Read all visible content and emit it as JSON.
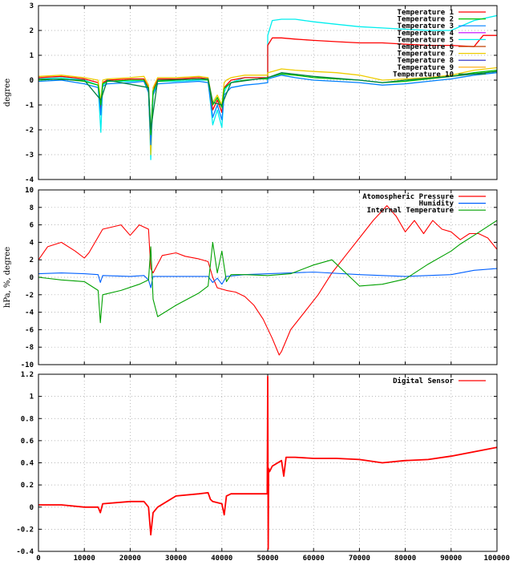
{
  "chart_data": [
    {
      "type": "line",
      "ylabel": "degree",
      "ylim": [
        -4,
        3
      ],
      "yticks": [
        -4,
        -3,
        -2,
        -1,
        0,
        1,
        2,
        3
      ],
      "xlim": [
        0,
        100000
      ],
      "grid": true,
      "legend": "top-right",
      "series": [
        {
          "name": "Temperature 1",
          "color": "#ff0000"
        },
        {
          "name": "Temperature 2",
          "color": "#00c000"
        },
        {
          "name": "Temperature 3",
          "color": "#0080ff"
        },
        {
          "name": "Temperature 4",
          "color": "#c000ff"
        },
        {
          "name": "Temperature 5",
          "color": "#00eeee"
        },
        {
          "name": "Temperature 6",
          "color": "#c04000"
        },
        {
          "name": "Temperature 7",
          "color": "#eecc00"
        },
        {
          "name": "Temperature 8",
          "color": "#2020c0"
        },
        {
          "name": "Temperature 9",
          "color": "#ffa500"
        },
        {
          "name": "Temperature 10",
          "color": "#008040"
        }
      ],
      "traces": [
        {
          "series": 4,
          "x": [
            0,
            5000,
            10000,
            13000,
            13600,
            14000,
            15000,
            20000,
            23000,
            24000,
            24500,
            25000,
            26000,
            30000,
            35000,
            37000,
            38000,
            39000,
            40000,
            40500,
            41000,
            42000,
            45000,
            48000,
            49999,
            50000,
            51000,
            53000,
            56000,
            60000,
            65000,
            70000,
            75000,
            80000,
            85000,
            90000,
            95000,
            100000
          ],
          "y": [
            0.05,
            0.1,
            0.0,
            -0.2,
            -2.1,
            -0.2,
            -0.05,
            -0.05,
            0.0,
            -0.4,
            -3.2,
            -0.5,
            -0.05,
            -0.05,
            0.0,
            0.0,
            -1.8,
            -1.2,
            -1.9,
            -0.5,
            -0.3,
            -0.1,
            0.1,
            0.1,
            0.05,
            1.8,
            2.4,
            2.45,
            2.45,
            2.35,
            2.25,
            2.15,
            2.1,
            2.05,
            2.0,
            2.0,
            2.4,
            2.6
          ]
        },
        {
          "series": 0,
          "x": [
            0,
            5000,
            10000,
            13000,
            13600,
            14000,
            15000,
            20000,
            23000,
            24000,
            24500,
            25000,
            26000,
            30000,
            35000,
            37000,
            38000,
            39000,
            40000,
            40500,
            41000,
            42000,
            45000,
            48000,
            49999,
            50000,
            51000,
            53000,
            56000,
            60000,
            65000,
            70000,
            75000,
            80000,
            85000,
            90000,
            95000,
            97000,
            100000
          ],
          "y": [
            0.1,
            0.15,
            0.05,
            -0.1,
            -1.2,
            -0.1,
            0.0,
            0.05,
            0.05,
            -0.3,
            -2.8,
            -0.4,
            0.05,
            0.05,
            0.1,
            0.05,
            -1.2,
            -0.8,
            -1.3,
            -0.3,
            -0.2,
            0.0,
            0.1,
            0.1,
            0.1,
            1.4,
            1.7,
            1.7,
            1.65,
            1.6,
            1.55,
            1.5,
            1.5,
            1.45,
            1.4,
            1.4,
            1.35,
            1.8,
            1.8
          ]
        },
        {
          "series": 6,
          "x": [
            0,
            5000,
            10000,
            13000,
            13600,
            14000,
            15000,
            20000,
            23000,
            24000,
            24500,
            25000,
            26000,
            30000,
            35000,
            37000,
            38000,
            39000,
            40000,
            40500,
            41000,
            42000,
            45000,
            48000,
            49999,
            50000,
            51000,
            53000,
            56000,
            60000,
            65000,
            70000,
            75000,
            80000,
            85000,
            90000,
            95000,
            100000
          ],
          "y": [
            0.15,
            0.2,
            0.1,
            0.0,
            -0.9,
            0.0,
            0.05,
            0.1,
            0.15,
            -0.2,
            -3.0,
            -0.3,
            0.1,
            0.1,
            0.15,
            0.1,
            -0.9,
            -0.6,
            -1.0,
            -0.1,
            0.0,
            0.1,
            0.2,
            0.2,
            0.2,
            0.3,
            0.35,
            0.45,
            0.4,
            0.35,
            0.3,
            0.2,
            0.0,
            0.05,
            0.1,
            0.2,
            0.4,
            0.5
          ]
        },
        {
          "series": 2,
          "x": [
            0,
            5000,
            10000,
            13000,
            13600,
            14000,
            15000,
            20000,
            23000,
            24000,
            24500,
            25000,
            26000,
            30000,
            35000,
            37000,
            38000,
            39000,
            40000,
            40500,
            41000,
            42000,
            45000,
            48000,
            49999,
            50000,
            51000,
            53000,
            56000,
            60000,
            65000,
            70000,
            75000,
            80000,
            85000,
            90000,
            95000,
            100000
          ],
          "y": [
            -0.05,
            0.0,
            -0.15,
            -0.3,
            -1.4,
            -0.25,
            -0.15,
            -0.1,
            -0.05,
            -0.5,
            -2.6,
            -0.6,
            -0.15,
            -0.1,
            -0.05,
            -0.1,
            -1.5,
            -1.0,
            -1.6,
            -0.6,
            -0.5,
            -0.3,
            -0.2,
            -0.15,
            -0.1,
            0.05,
            0.1,
            0.2,
            0.1,
            0.0,
            -0.05,
            -0.1,
            -0.2,
            -0.15,
            -0.05,
            0.05,
            0.2,
            0.3
          ]
        },
        {
          "series": 1,
          "x": [
            0,
            5000,
            10000,
            13000,
            13600,
            14000,
            15000,
            20000,
            23000,
            24000,
            24500,
            25000,
            26000,
            30000,
            35000,
            37000,
            38000,
            39000,
            40000,
            40500,
            41000,
            42000,
            45000,
            48000,
            49999,
            50000,
            51000,
            53000,
            56000,
            60000,
            65000,
            70000,
            75000,
            80000,
            85000,
            90000,
            95000,
            100000
          ],
          "y": [
            0.0,
            0.05,
            -0.05,
            -0.2,
            -1.0,
            -0.15,
            -0.05,
            0.0,
            0.0,
            -0.35,
            -2.2,
            -0.45,
            -0.05,
            0.0,
            0.05,
            0.0,
            -1.0,
            -0.7,
            -1.1,
            -0.35,
            -0.25,
            -0.1,
            0.0,
            0.05,
            0.05,
            0.1,
            0.15,
            0.25,
            0.2,
            0.1,
            0.05,
            0.0,
            -0.1,
            -0.05,
            0.05,
            0.15,
            0.3,
            0.4
          ]
        },
        {
          "series": 9,
          "x": [
            0,
            10000,
            13600,
            15000,
            24000,
            24500,
            26000,
            37000,
            38000,
            40000,
            42000,
            50000,
            53000,
            60000,
            70000,
            75000,
            80000,
            90000,
            100000
          ],
          "y": [
            0.05,
            0.0,
            -0.8,
            0.0,
            -0.3,
            -2.0,
            0.0,
            0.05,
            -0.9,
            -1.0,
            -0.1,
            0.1,
            0.3,
            0.15,
            0.0,
            -0.1,
            0.0,
            0.15,
            0.35
          ]
        }
      ]
    },
    {
      "type": "line",
      "ylabel": "hPa, %, degree",
      "ylim": [
        -10,
        10
      ],
      "yticks": [
        -10,
        -8,
        -6,
        -4,
        -2,
        0,
        2,
        4,
        6,
        8,
        10
      ],
      "xlim": [
        0,
        100000
      ],
      "grid": true,
      "legend": "top-right",
      "series": [
        {
          "name": "Atomospheric Pressure",
          "color": "#ff0000",
          "x": [
            0,
            2000,
            5000,
            8000,
            10000,
            11000,
            14000,
            18000,
            20000,
            22000,
            24000,
            24500,
            25000,
            27000,
            30000,
            32000,
            35000,
            37000,
            38000,
            39000,
            41000,
            43000,
            45000,
            47000,
            49000,
            51000,
            52500,
            53000,
            55000,
            58000,
            61000,
            64000,
            67000,
            70000,
            73000,
            76000,
            78000,
            80000,
            82000,
            84000,
            86000,
            88000,
            90000,
            92000,
            94000,
            96000,
            98000,
            100000
          ],
          "y": [
            2.0,
            3.5,
            4.0,
            3.0,
            2.2,
            2.8,
            5.5,
            6.0,
            4.8,
            6.0,
            5.5,
            1.0,
            0.5,
            2.5,
            2.8,
            2.4,
            2.1,
            1.8,
            0.0,
            -1.2,
            -1.5,
            -1.7,
            -2.2,
            -3.2,
            -4.8,
            -7.0,
            -8.9,
            -8.5,
            -6.0,
            -4.0,
            -2.0,
            0.5,
            2.5,
            4.5,
            6.5,
            8.2,
            7.0,
            5.2,
            6.5,
            5.0,
            6.5,
            5.5,
            5.2,
            4.3,
            5.0,
            5.0,
            4.5,
            3.2
          ]
        },
        {
          "name": "Humidity",
          "color": "#0060ff",
          "x": [
            0,
            5000,
            10000,
            13000,
            13500,
            14000,
            20000,
            23000,
            24000,
            24500,
            25000,
            30000,
            35000,
            37000,
            38000,
            39000,
            40000,
            41000,
            45000,
            50000,
            60000,
            70000,
            80000,
            90000,
            95000,
            100000
          ],
          "y": [
            0.4,
            0.5,
            0.4,
            0.3,
            -0.6,
            0.2,
            0.1,
            0.2,
            -0.3,
            -1.2,
            0.1,
            0.1,
            0.1,
            0.1,
            -0.6,
            -0.1,
            -0.8,
            0.1,
            0.3,
            0.4,
            0.6,
            0.3,
            0.1,
            0.3,
            0.8,
            1.0
          ]
        },
        {
          "name": "Internal Temperature",
          "color": "#00a000",
          "x": [
            0,
            5000,
            10000,
            13000,
            13500,
            14000,
            18000,
            22000,
            24000,
            24500,
            25000,
            26000,
            30000,
            35000,
            37000,
            38000,
            39000,
            40000,
            41000,
            42000,
            45000,
            50000,
            55000,
            60000,
            64000,
            68000,
            70000,
            75000,
            80000,
            85000,
            90000,
            92000,
            95000,
            100000
          ],
          "y": [
            0.0,
            -0.3,
            -0.5,
            -1.5,
            -5.2,
            -2.0,
            -1.5,
            -0.8,
            -0.3,
            3.5,
            -2.5,
            -4.5,
            -3.2,
            -1.8,
            -1.0,
            4.0,
            0.5,
            3.0,
            -0.5,
            0.3,
            0.3,
            0.2,
            0.4,
            1.4,
            2.0,
            0.0,
            -1.0,
            -0.8,
            -0.2,
            1.5,
            3.0,
            3.8,
            4.8,
            6.5
          ]
        }
      ]
    },
    {
      "type": "line",
      "ylabel": "",
      "ylim": [
        -0.4,
        1.2
      ],
      "yticks": [
        -0.4,
        -0.2,
        0,
        0.2,
        0.4,
        0.6,
        0.8,
        1,
        1.2
      ],
      "xlim": [
        0,
        100000
      ],
      "xticks": [
        0,
        10000,
        20000,
        30000,
        40000,
        50000,
        60000,
        70000,
        80000,
        90000,
        100000
      ],
      "grid": true,
      "legend": "top-right",
      "series": [
        {
          "name": "Digital Sensor",
          "color": "#ff0000",
          "x": [
            0,
            5000,
            10000,
            13000,
            13500,
            14000,
            20000,
            23000,
            24000,
            24500,
            25000,
            26000,
            30000,
            35000,
            37000,
            37500,
            38000,
            40000,
            40500,
            41000,
            42000,
            45000,
            49900,
            50000,
            50100,
            50200,
            50400,
            51000,
            53000,
            53500,
            54000,
            56000,
            60000,
            65000,
            70000,
            75000,
            80000,
            85000,
            90000,
            95000,
            100000
          ],
          "y": [
            0.02,
            0.02,
            0.0,
            0.0,
            -0.05,
            0.03,
            0.05,
            0.05,
            0.0,
            -0.25,
            -0.05,
            0.0,
            0.1,
            0.12,
            0.13,
            0.07,
            0.05,
            0.03,
            -0.07,
            0.1,
            0.12,
            0.12,
            0.12,
            1.18,
            -0.38,
            0.35,
            0.32,
            0.37,
            0.42,
            0.28,
            0.45,
            0.45,
            0.44,
            0.44,
            0.43,
            0.4,
            0.42,
            0.43,
            0.46,
            0.5,
            0.54
          ]
        }
      ]
    }
  ]
}
